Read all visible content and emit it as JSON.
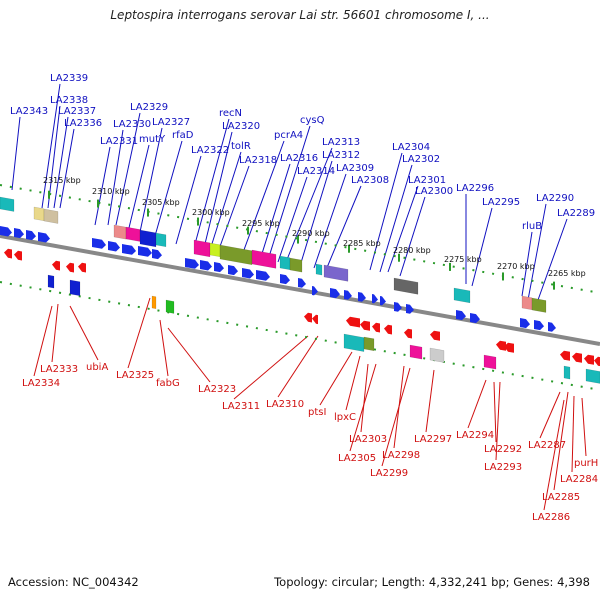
{
  "title": "Leptospira interrogans serovar Lai str. 56601 chromosome I, ...",
  "footer": {
    "accession": "Accession: NC_004342",
    "stats": "Topology: circular; Length: 4,332,241 bp; Genes: 4,398"
  },
  "colors": {
    "forward_label": "#1010c0",
    "reverse_label": "#d01010",
    "forward_gene": "#1a2ee8",
    "reverse_gene": "#ee1111",
    "tick": "#2a9a2a",
    "backbone": "#888888"
  },
  "ticks": [
    {
      "label": "2315 kbp",
      "pos": 2315
    },
    {
      "label": "2310 kbp",
      "pos": 2310
    },
    {
      "label": "2305 kbp",
      "pos": 2305
    },
    {
      "label": "2300 kbp",
      "pos": 2300
    },
    {
      "label": "2295 kbp",
      "pos": 2295
    },
    {
      "label": "2290 kbp",
      "pos": 2290
    },
    {
      "label": "2285 kbp",
      "pos": 2285
    },
    {
      "label": "2280 kbp",
      "pos": 2280
    },
    {
      "label": "2275 kbp",
      "pos": 2275
    },
    {
      "label": "2270 kbp",
      "pos": 2270
    },
    {
      "label": "2265 kbp",
      "pos": 2265
    }
  ],
  "forward_labels": [
    "LA2343",
    "LA2339",
    "LA2338",
    "LA2337",
    "LA2336",
    "LA2331",
    "LA2330",
    "LA2329",
    "mutY",
    "LA2327",
    "rfaD",
    "LA2322",
    "recN",
    "LA2320",
    "tolR",
    "LA2318",
    "pcrA4",
    "cysQ",
    "LA2316",
    "LA2313",
    "LA2314",
    "LA2312",
    "LA2309",
    "LA2308",
    "LA2304",
    "LA2302",
    "LA2301",
    "LA2300",
    "LA2296",
    "LA2295",
    "rluB",
    "LA2290",
    "LA2289"
  ],
  "reverse_labels": [
    "LA2333",
    "LA2334",
    "ubiA",
    "LA2325",
    "fabG",
    "LA2323",
    "LA2311",
    "LA2310",
    "ptsI",
    "lpxC",
    "LA2303",
    "LA2305",
    "LA2298",
    "LA2299",
    "LA2297",
    "LA2294",
    "LA2292",
    "LA2293",
    "LA2287",
    "LA2285",
    "LA2284",
    "purH",
    "LA2286"
  ]
}
